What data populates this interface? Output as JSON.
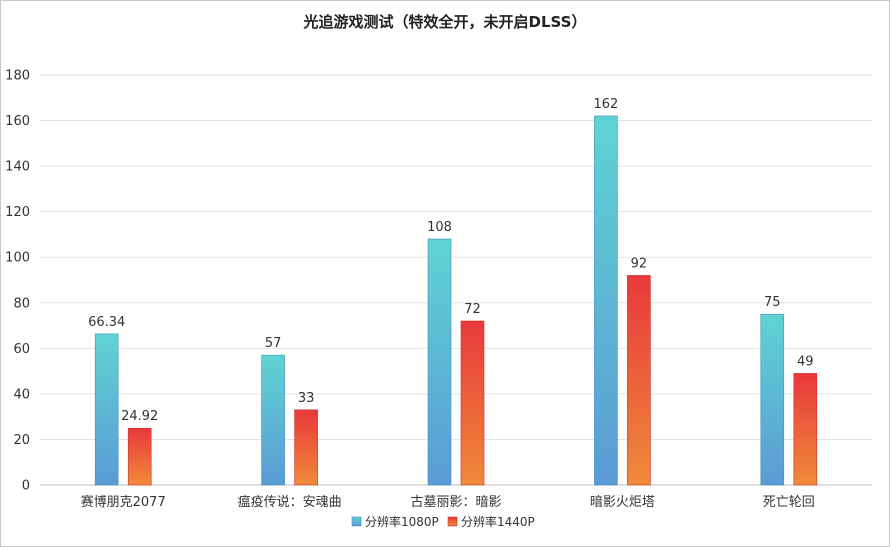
{
  "chart_data": {
    "type": "bar",
    "title": "光追游戏测试（特效全开，未开启DLSS）",
    "xlabel": "",
    "ylabel": "",
    "ylim": [
      0,
      180
    ],
    "yticks": [
      0,
      20,
      40,
      60,
      80,
      100,
      120,
      140,
      160,
      180
    ],
    "grid": true,
    "legend_position": "bottom",
    "categories": [
      "赛博朋克2077",
      "瘟疫传说：安魂曲",
      "古墓丽影：暗影",
      "暗影火炬塔",
      "死亡轮回"
    ],
    "series": [
      {
        "name": "分辨率1080P",
        "values": [
          66.34,
          57,
          108,
          162,
          75
        ],
        "value_labels": [
          "66.34",
          "57",
          "108",
          "162",
          "75"
        ],
        "color_top": "#5fd3d3",
        "color_bottom": "#5b9bd5"
      },
      {
        "name": "分辨率1440P",
        "values": [
          24.92,
          33,
          72,
          92,
          49
        ],
        "value_labels": [
          "24.92",
          "33",
          "72",
          "92",
          "49"
        ],
        "color_top": "#e8393b",
        "color_bottom": "#f08a3a"
      }
    ]
  }
}
